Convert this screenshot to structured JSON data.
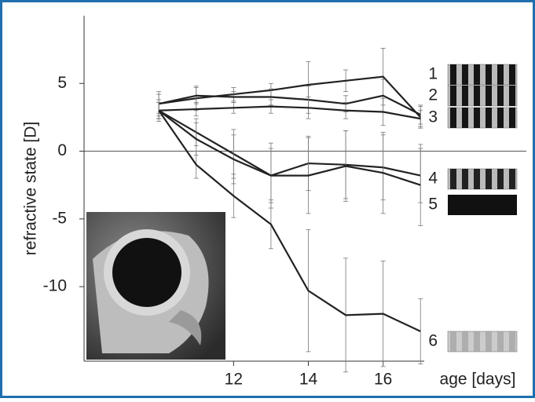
{
  "chart_data": {
    "type": "line",
    "x_label": "age [days]",
    "y_label": "refractive state [D]",
    "x": [
      10,
      11,
      12,
      13,
      14,
      15,
      16,
      17
    ],
    "xlim": [
      8,
      17.1
    ],
    "xticks": [
      12,
      14,
      16
    ],
    "ylim": [
      -15.5,
      10
    ],
    "yticks": [
      5,
      0,
      -5,
      -10
    ],
    "series": [
      {
        "name": "1",
        "color": "#222222",
        "values": [
          3.5,
          3.9,
          4.2,
          4.5,
          4.9,
          5.2,
          5.5,
          2.5
        ],
        "errors": [
          0.9,
          0.9,
          0.5,
          0.5,
          1.7,
          0.8,
          2.1,
          0.8
        ]
      },
      {
        "name": "2",
        "color": "#222222",
        "values": [
          3.5,
          4.1,
          4.0,
          4.0,
          3.8,
          3.5,
          4.1,
          2.7
        ],
        "errors": [
          0.7,
          0.6,
          0.4,
          0.6,
          1.0,
          0.6,
          1.2,
          0.7
        ]
      },
      {
        "name": "3",
        "color": "#222222",
        "values": [
          3.0,
          3.1,
          3.2,
          3.3,
          3.2,
          3.0,
          2.9,
          2.4
        ],
        "errors": [
          0.6,
          0.5,
          0.4,
          0.5,
          0.8,
          0.6,
          1.0,
          0.6
        ]
      },
      {
        "name": "4",
        "color": "#222222",
        "values": [
          3.0,
          1.4,
          -0.2,
          -1.8,
          -0.9,
          -1.0,
          -1.2,
          -1.8
        ],
        "errors": [
          0.6,
          1.0,
          1.8,
          2.0,
          2.0,
          2.5,
          2.4,
          2.0
        ]
      },
      {
        "name": "5",
        "color": "#222222",
        "values": [
          3.0,
          0.9,
          -0.6,
          -1.8,
          -1.8,
          -1.1,
          -1.6,
          -2.5
        ],
        "errors": [
          0.6,
          1.2,
          1.8,
          2.4,
          2.8,
          2.6,
          3.0,
          3.0
        ]
      },
      {
        "name": "6",
        "color": "#222222",
        "values": [
          3.0,
          -1.0,
          -3.3,
          -5.4,
          -10.3,
          -12.1,
          -12.0,
          -13.3
        ],
        "errors": [
          0.8,
          1.0,
          1.6,
          1.8,
          4.5,
          4.2,
          3.9,
          2.4
        ]
      }
    ]
  }
}
